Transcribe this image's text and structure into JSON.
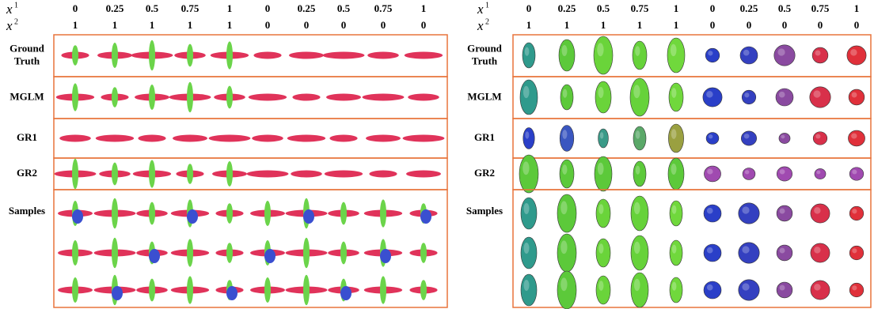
{
  "panels": [
    {
      "header_vars": [
        {
          "symbol": "x",
          "index": "1"
        },
        {
          "symbol": "x",
          "index": "2"
        }
      ],
      "header_rows": [
        [
          0,
          0.25,
          0.5,
          0.75,
          1,
          0,
          0.25,
          0.5,
          0.75,
          1
        ],
        [
          1,
          1,
          1,
          1,
          1,
          0,
          0,
          0,
          0,
          0
        ]
      ],
      "row_labels": [
        [
          "Ground",
          "Truth"
        ],
        [
          "MGLM"
        ],
        [
          "GR1"
        ],
        [
          "GR2"
        ],
        [
          "Samples"
        ]
      ]
    },
    {
      "header_vars": [
        {
          "symbol": "x",
          "index": "1"
        },
        {
          "symbol": "x",
          "index": "2"
        }
      ],
      "header_rows": [
        [
          0,
          0.25,
          0.5,
          0.75,
          1,
          0,
          0.25,
          0.5,
          0.75,
          1
        ],
        [
          1,
          1,
          1,
          1,
          1,
          0,
          0,
          0,
          0,
          0
        ]
      ],
      "row_labels": [
        [
          "Ground",
          "Truth"
        ],
        [
          "MGLM"
        ],
        [
          "GR1"
        ],
        [
          "GR2"
        ],
        [
          "Samples"
        ]
      ]
    }
  ]
}
